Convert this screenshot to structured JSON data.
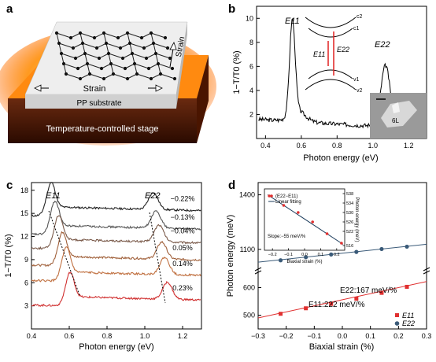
{
  "panels": {
    "a": {
      "letter": "a",
      "strain_label": "Strain",
      "strain_side_label": "Strain",
      "substrate_label": "PP substrate",
      "stage_label": "Temperature-controlled stage"
    },
    "b": {
      "letter": "b",
      "ylabel": "1−T/T0 (%)",
      "xlabel": "Photon energy (eV)",
      "xticks": [
        "0.4",
        "0.6",
        "0.8",
        "1.0",
        "1.2"
      ],
      "yticks": [
        "2",
        "4",
        "6",
        "8",
        "10"
      ],
      "peak1_label": "E11",
      "peak2_label": "E22",
      "inset_labels": {
        "E11": "E11",
        "E22": "E22",
        "c2": "c2",
        "c1": "c1",
        "v1": "v1",
        "v2": "v2"
      },
      "micro_label": "6L"
    },
    "c": {
      "letter": "c",
      "ylabel": "1−T/T0 (%)",
      "xlabel": "Photon energy (eV)",
      "xticks": [
        "0.4",
        "0.6",
        "0.8",
        "1.0",
        "1.2"
      ],
      "yticks": [
        "3",
        "6",
        "9",
        "12",
        "15",
        "18"
      ],
      "peak1_label": "E11",
      "peak2_label": "E22",
      "strains": [
        "−0.22%",
        "−0.13%",
        "−0.04%",
        "0.05%",
        "0.14%",
        "0.23%"
      ],
      "colors": [
        "#222222",
        "#555555",
        "#7a5a4a",
        "#a0603a",
        "#c07040",
        "#d03030"
      ]
    },
    "d": {
      "letter": "d",
      "ylabel": "Photon energy (meV)",
      "xlabel": "Biaxial strain (%)",
      "xticks": [
        "−0.3",
        "−0.2",
        "−0.1",
        "0.0",
        "0.1",
        "0.2",
        "0.3"
      ],
      "yticks_top": [
        "1100",
        "1400"
      ],
      "yticks_bottom": [
        "500",
        "600"
      ],
      "e22_label": "E22:167 meV/%",
      "e11_label": "E11:222 meV/%",
      "legend": [
        "E11",
        "E22"
      ],
      "inset": {
        "legend_points": "(E22−E11)",
        "legend_line": "Linear fitting",
        "slope_label": "Slope:−55 meV/%",
        "xlabel": "Biaxial strain (%)",
        "ylabel": "Photon energy (meV)",
        "xticks": [
          "−0.2",
          "−0.1",
          "0.0",
          "0.1",
          "0.2"
        ],
        "yticks": [
          "516",
          "522",
          "526",
          "530",
          "534",
          "538"
        ]
      }
    }
  },
  "chart_data": [
    {
      "type": "line",
      "panel": "b",
      "xlabel": "Photon energy (eV)",
      "ylabel": "1−T/T0 (%)",
      "xlim": [
        0.4,
        1.3
      ],
      "ylim": [
        0,
        11
      ],
      "peaks": [
        {
          "label": "E11",
          "x": 0.55,
          "y": 9.4
        },
        {
          "label": "E22",
          "x": 1.07,
          "y": 5.9
        }
      ]
    },
    {
      "type": "line",
      "panel": "c",
      "xlabel": "Photon energy (eV)",
      "ylabel": "1−T/T0 (%)",
      "xlim": [
        0.4,
        1.3
      ],
      "ylim": [
        0,
        19
      ],
      "series": [
        {
          "name": "−0.22%",
          "offset": 15.0,
          "E11": 0.505,
          "E22": 1.045
        },
        {
          "name": "−0.13%",
          "offset": 12.6,
          "E11": 0.525,
          "E22": 1.06
        },
        {
          "name": "−0.04%",
          "offset": 10.8,
          "E11": 0.545,
          "E22": 1.075
        },
        {
          "name": "0.05%",
          "offset": 8.6,
          "E11": 0.565,
          "E22": 1.09
        },
        {
          "name": "0.14%",
          "offset": 6.6,
          "E11": 0.585,
          "E22": 1.105
        },
        {
          "name": "0.23%",
          "offset": 3.4,
          "E11": 0.605,
          "E22": 1.12
        }
      ]
    },
    {
      "type": "scatter",
      "panel": "d",
      "xlabel": "Biaxial strain (%)",
      "ylabel": "Photon energy (meV)",
      "xlim": [
        -0.3,
        0.3
      ],
      "series": [
        {
          "name": "E22",
          "x": [
            -0.22,
            -0.13,
            -0.04,
            0.05,
            0.14,
            0.23
          ],
          "y": [
            1040,
            1057,
            1072,
            1086,
            1102,
            1115
          ]
        },
        {
          "name": "E11",
          "x": [
            -0.22,
            -0.13,
            -0.04,
            0.05,
            0.14,
            0.23
          ],
          "y": [
            505,
            525,
            541,
            560,
            581,
            603
          ]
        }
      ]
    },
    {
      "type": "scatter",
      "panel": "d-inset",
      "xlabel": "Biaxial strain (%)",
      "ylabel": "Photon energy (meV)",
      "xlim": [
        -0.25,
        0.25
      ],
      "ylim": [
        514,
        540
      ],
      "series": [
        {
          "name": "(E22−E11)",
          "x": [
            -0.22,
            -0.13,
            -0.04,
            0.05,
            0.14,
            0.23
          ],
          "y": [
            537,
            533,
            530,
            526,
            521,
            517
          ]
        }
      ]
    }
  ]
}
